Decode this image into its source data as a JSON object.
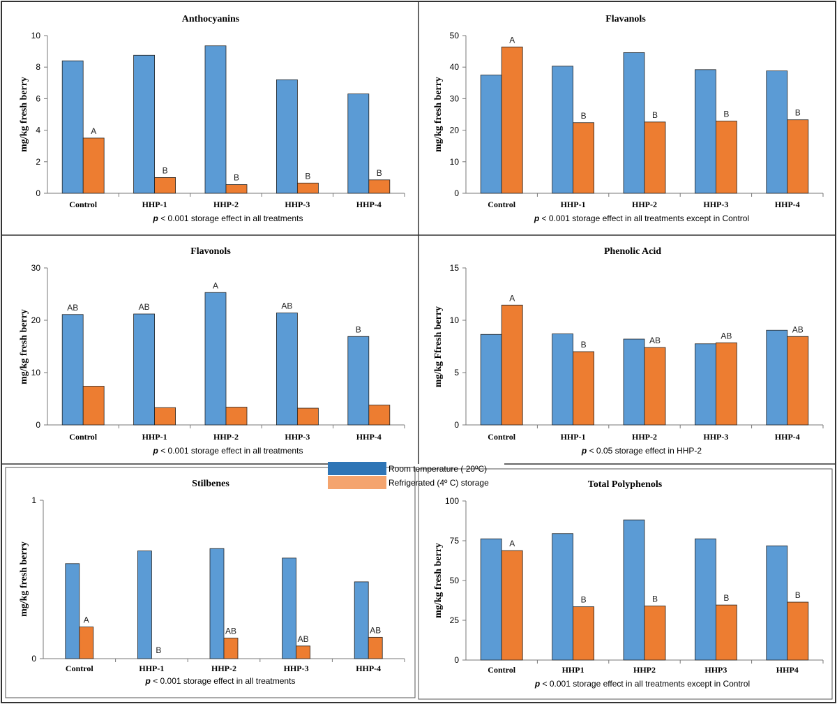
{
  "colors": {
    "room": "#5b9bd5",
    "fridge": "#ed7d31",
    "legend_room": "#2e75b6",
    "legend_fridge": "#f4a46e"
  },
  "legend": {
    "room_label": "Room temperature ( 20ºC)",
    "fridge_label": "Refrigerated (4º C) storage"
  },
  "chart_data": [
    {
      "type": "bar",
      "title": "Anthocyanins",
      "ylabel": "mg/kg fresh berry",
      "ylim": [
        0,
        10
      ],
      "yticks": [
        0,
        2,
        4,
        6,
        8,
        10
      ],
      "categories": [
        "Control",
        "HHP-1",
        "HHP-2",
        "HHP-3",
        "HHP-4"
      ],
      "series": [
        {
          "name": "Room temperature ( 20ºC)",
          "values": [
            8.4,
            8.75,
            9.35,
            7.2,
            6.3
          ],
          "letters": [
            "",
            "",
            "",
            "",
            ""
          ]
        },
        {
          "name": "Refrigerated (4º C) storage",
          "values": [
            3.5,
            1.0,
            0.55,
            0.65,
            0.85
          ],
          "letters": [
            "A",
            "B",
            "B",
            "B",
            "B"
          ]
        }
      ],
      "note_p": "p",
      "note_rest": " < 0.001 storage effect in all treatments"
    },
    {
      "type": "bar",
      "title": "Flavanols",
      "ylabel": "mg/kg fresh berry",
      "ylim": [
        0,
        50
      ],
      "yticks": [
        0,
        10,
        20,
        30,
        40,
        50
      ],
      "categories": [
        "Control",
        "HHP-1",
        "HHP-2",
        "HHP-3",
        "HHP-4"
      ],
      "series": [
        {
          "name": "Room temperature ( 20ºC)",
          "values": [
            37.5,
            40.3,
            44.6,
            39.2,
            38.8
          ],
          "letters": [
            "",
            "",
            "",
            "",
            ""
          ]
        },
        {
          "name": "Refrigerated (4º C) storage",
          "values": [
            46.4,
            22.4,
            22.6,
            22.9,
            23.3
          ],
          "letters": [
            "A",
            "B",
            "B",
            "B",
            "B"
          ]
        }
      ],
      "note_p": "p",
      "note_rest": " < 0.001 storage effect in all treatments except in Control"
    },
    {
      "type": "bar",
      "title": "Flavonols",
      "ylabel": "mg/kg fresh berry",
      "ylim": [
        0,
        30
      ],
      "yticks": [
        0,
        10,
        20,
        30
      ],
      "categories": [
        "Control",
        "HHP-1",
        "HHP-2",
        "HHP-3",
        "HHP-4"
      ],
      "series": [
        {
          "name": "Room temperature ( 20ºC)",
          "values": [
            21.1,
            21.2,
            25.3,
            21.4,
            16.9
          ],
          "letters": [
            "AB",
            "AB",
            "A",
            "AB",
            "B"
          ]
        },
        {
          "name": "Refrigerated (4º C) storage",
          "values": [
            7.4,
            3.3,
            3.4,
            3.2,
            3.8
          ],
          "letters": [
            "",
            "",
            "",
            "",
            ""
          ]
        }
      ],
      "note_p": "p",
      "note_rest": " < 0.001 storage effect in all treatments"
    },
    {
      "type": "bar",
      "title": "Phenolic Acid",
      "ylabel": "mg/kg Ffresh berry",
      "ylim": [
        0,
        15
      ],
      "yticks": [
        0,
        5,
        10,
        15
      ],
      "categories": [
        "Control",
        "HHP-1",
        "HHP-2",
        "HHP-3",
        "HHP-4"
      ],
      "series": [
        {
          "name": "Room temperature ( 20ºC)",
          "values": [
            8.65,
            8.7,
            8.2,
            7.75,
            9.05
          ],
          "letters": [
            "",
            "",
            "",
            "",
            ""
          ]
        },
        {
          "name": "Refrigerated (4º C) storage",
          "values": [
            11.45,
            7.0,
            7.4,
            7.85,
            8.45
          ],
          "letters": [
            "A",
            "B",
            "AB",
            "AB",
            "AB"
          ]
        }
      ],
      "note_p": "p",
      "note_rest": " < 0.05 storage effect in HHP-2"
    },
    {
      "type": "bar",
      "title": "Stilbenes",
      "ylabel": "mg/kg fresh berry",
      "ylim": [
        0,
        1
      ],
      "yticks": [
        0,
        1
      ],
      "categories": [
        "Control",
        "HHP-1",
        "HHP-2",
        "HHP-3",
        "HHP-4"
      ],
      "series": [
        {
          "name": "Room temperature ( 20ºC)",
          "values": [
            0.6,
            0.68,
            0.695,
            0.635,
            0.485
          ],
          "letters": [
            "",
            "",
            "",
            "",
            ""
          ]
        },
        {
          "name": "Refrigerated (4º C) storage",
          "values": [
            0.2,
            0.0,
            0.13,
            0.08,
            0.135
          ],
          "letters": [
            "A",
            "B",
            "AB",
            "AB",
            "AB"
          ]
        }
      ],
      "note_p": "p",
      "note_rest": " < 0.001 storage effect in all treatments"
    },
    {
      "type": "bar",
      "title": "Total Polyphenols",
      "ylabel": "mg/kg fresh berry",
      "ylim": [
        0,
        100
      ],
      "yticks": [
        0,
        25,
        50,
        75,
        100
      ],
      "categories": [
        "Control",
        "HHP1",
        "HHP2",
        "HHP3",
        "HHP4"
      ],
      "series": [
        {
          "name": "Room temperature ( 20ºC)",
          "values": [
            76.2,
            79.5,
            88.1,
            76.2,
            71.8
          ],
          "letters": [
            "",
            "",
            "",
            "",
            ""
          ]
        },
        {
          "name": "Refrigerated (4º C) storage",
          "values": [
            68.8,
            33.5,
            34.0,
            34.6,
            36.4
          ],
          "letters": [
            "A",
            "B",
            "B",
            "B",
            "B"
          ]
        }
      ],
      "note_p": "p",
      "note_rest": " < 0.001 storage effect in all treatments except in Control"
    }
  ]
}
